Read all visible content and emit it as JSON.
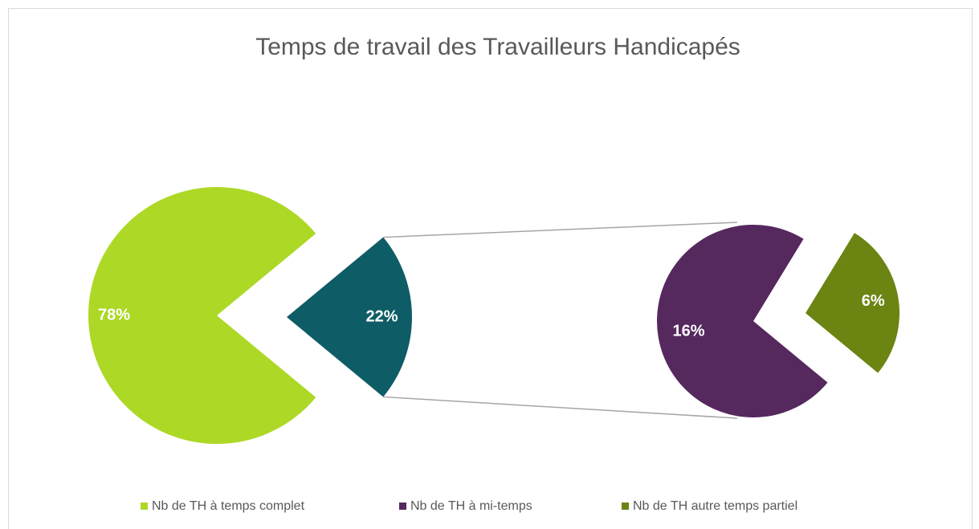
{
  "chart_data": {
    "type": "pie",
    "title": "Temps de travail des Travailleurs Handicapés",
    "categories": [
      "Nb de TH à temps complet",
      null,
      "Nb de TH à mi-temps",
      "Nb de TH autre temps partiel"
    ],
    "values": [
      78,
      22,
      16,
      6
    ],
    "value_labels": [
      "78%",
      "22%",
      "16%",
      "6%"
    ],
    "colors": [
      "#add826",
      "#0e5c66",
      "#55285e",
      "#6b8412"
    ],
    "legend": "bottom"
  }
}
